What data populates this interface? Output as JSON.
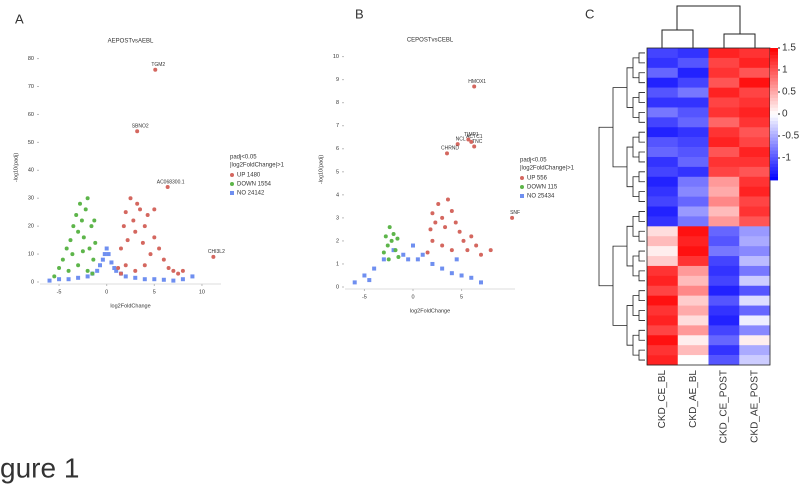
{
  "caption": "gure 1",
  "chart_data": [
    {
      "type": "scatter",
      "panel": "A",
      "title": "AEPOSTvsAEBL",
      "x_label": "log2FoldChange",
      "y_label": "-log10(padj)",
      "xlim": [
        -7,
        12
      ],
      "ylim": [
        0,
        82
      ],
      "xticks": [
        -5,
        0,
        5,
        10
      ],
      "yticks": [
        0,
        10,
        20,
        30,
        40,
        50,
        60,
        70,
        80
      ],
      "grid": false,
      "legend_title": [
        "padj<0.05",
        "|log2FoldChange|>1"
      ],
      "series": [
        {
          "name": "UP 1480",
          "color": "#d4675f",
          "marker": "circle",
          "x": [
            1.2,
            1.5,
            1.8,
            2,
            2.2,
            2.5,
            2.8,
            3,
            3.2,
            3.5,
            3.8,
            4,
            4.3,
            4.6,
            5,
            5.5,
            6,
            6.5,
            7,
            7.5,
            8,
            2,
            3,
            4,
            1.5,
            5
          ],
          "y": [
            5,
            12,
            20,
            25,
            15,
            30,
            22,
            18,
            28,
            26,
            14,
            20,
            24,
            10,
            16,
            12,
            8,
            5,
            4,
            3,
            4,
            6,
            4,
            6,
            3,
            26
          ]
        },
        {
          "name": "DOWN 1554",
          "color": "#5db54a",
          "marker": "circle",
          "x": [
            -5.5,
            -5,
            -4.6,
            -4.2,
            -3.8,
            -3.5,
            -3.2,
            -3,
            -2.8,
            -2.6,
            -2.4,
            -2.2,
            -2,
            -1.8,
            -1.6,
            -1.4,
            -1.2,
            -4,
            -3,
            -2,
            -1.5,
            -3.6,
            -2.5,
            -1.3
          ],
          "y": [
            2,
            5,
            8,
            12,
            15,
            20,
            24,
            18,
            28,
            22,
            16,
            26,
            30,
            12,
            20,
            8,
            14,
            4,
            6,
            4,
            3,
            10,
            11,
            22
          ]
        },
        {
          "name": "NO 24142",
          "color": "#6f8ff0",
          "marker": "square",
          "x": [
            -6,
            -5,
            -4,
            -3,
            -2,
            -1.5,
            -1,
            -0.7,
            -0.4,
            -0.2,
            0,
            0.2,
            0.5,
            0.8,
            1,
            1.5,
            2,
            3,
            4,
            5,
            6,
            7,
            8,
            9
          ],
          "y": [
            0.5,
            1,
            1,
            1.5,
            2,
            3,
            4,
            6,
            8,
            10,
            12,
            10,
            7,
            5,
            4,
            3,
            2,
            1.5,
            1,
            1,
            0.8,
            0.5,
            1,
            2
          ]
        }
      ],
      "annotations": [
        {
          "text": "TGM2",
          "x": 5.1,
          "y": 76
        },
        {
          "text": "SBNO2",
          "x": 3.2,
          "y": 54
        },
        {
          "text": "AC068300.1",
          "x": 6.4,
          "y": 34
        },
        {
          "text": "CHI3L2",
          "x": 11.2,
          "y": 9
        }
      ]
    },
    {
      "type": "scatter",
      "panel": "B",
      "title": "CEPOSTvsCEBL",
      "x_label": "log2FoldChange",
      "y_label": "-log10(padj)",
      "xlim": [
        -7,
        10.5
      ],
      "ylim": [
        0,
        10.2
      ],
      "xticks": [
        -5,
        0,
        5
      ],
      "yticks": [
        0,
        1,
        2,
        3,
        4,
        5,
        6,
        7,
        8,
        9,
        10
      ],
      "grid": false,
      "legend_title": [
        "padj<0.05",
        "|log2FoldChange|>1"
      ],
      "series": [
        {
          "name": "UP 556",
          "color": "#d4675f",
          "marker": "circle",
          "x": [
            1.5,
            1.8,
            2,
            2.3,
            2.6,
            3,
            3.3,
            3.6,
            4,
            4.4,
            4.8,
            5.2,
            5.6,
            6,
            6.5,
            7,
            8,
            2,
            3,
            4
          ],
          "y": [
            1.5,
            2.5,
            3.2,
            2.8,
            3.6,
            3,
            2.6,
            3.8,
            3.3,
            2.8,
            2.4,
            2,
            1.6,
            2.2,
            1.8,
            1.4,
            1.6,
            2,
            1.8,
            1.6
          ]
        },
        {
          "name": "DOWN 115",
          "color": "#5db54a",
          "marker": "circle",
          "x": [
            -3,
            -2.8,
            -2.6,
            -2.4,
            -2.2,
            -2,
            -1.8,
            -1.6,
            -1.5,
            -2.5
          ],
          "y": [
            1.5,
            2.2,
            1.8,
            2.6,
            2,
            2.3,
            1.6,
            2.1,
            1.3,
            1.2
          ]
        },
        {
          "name": "NO 25434",
          "color": "#6f8ff0",
          "marker": "square",
          "x": [
            -6,
            -5,
            -4,
            -3,
            -2,
            -1,
            -0.5,
            0,
            0.5,
            1,
            2,
            3,
            4,
            5,
            6,
            7,
            -4.5,
            4.5
          ],
          "y": [
            0.2,
            0.5,
            0.8,
            1.2,
            1.6,
            1.4,
            1.2,
            1.8,
            1.2,
            1.4,
            1,
            0.8,
            0.6,
            0.5,
            0.4,
            0.2,
            0.3,
            1.2
          ]
        }
      ],
      "annotations": [
        {
          "text": "HMOX1",
          "x": 6.3,
          "y": 8.7
        },
        {
          "text": "TIMP1",
          "x": 5.7,
          "y": 6.4
        },
        {
          "text": "NCL",
          "x": 4.6,
          "y": 6.2
        },
        {
          "text": "ACTC1",
          "x": 6.0,
          "y": 6.3
        },
        {
          "text": "TNC",
          "x": 6.3,
          "y": 6.1
        },
        {
          "text": "CHRND",
          "x": 3.5,
          "y": 5.8
        },
        {
          "text": "SNF",
          "x": 10.2,
          "y": 3.0
        }
      ]
    },
    {
      "type": "heatmap",
      "panel": "C",
      "columns": [
        "CKD_CE_BL",
        "CKD_AE_BL",
        "CKD_CE_POST",
        "CKD_AE_POST"
      ],
      "colorscale": [
        "#0000ff",
        "#ffffff",
        "#ff0000"
      ],
      "zlim": [
        -1.5,
        1.5
      ],
      "zticks": [
        -1,
        -0.5,
        0,
        0.5,
        1,
        1.5
      ],
      "values": [
        [
          -1.1,
          -1.2,
          1.3,
          1.2
        ],
        [
          -1.2,
          -1.0,
          1.1,
          1.3
        ],
        [
          -0.9,
          -1.3,
          1.2,
          1.0
        ],
        [
          -1.3,
          -1.1,
          1.0,
          1.4
        ],
        [
          -1.0,
          -0.8,
          1.3,
          1.1
        ],
        [
          -1.2,
          -1.2,
          1.1,
          1.2
        ],
        [
          -0.8,
          -1.0,
          1.2,
          1.3
        ],
        [
          -1.1,
          -0.9,
          0.9,
          1.2
        ],
        [
          -1.3,
          -1.2,
          1.2,
          1.0
        ],
        [
          -1.0,
          -1.1,
          1.3,
          1.1
        ],
        [
          -0.9,
          -1.0,
          1.0,
          1.3
        ],
        [
          -1.2,
          -0.9,
          1.2,
          1.2
        ],
        [
          -1.1,
          -1.2,
          1.1,
          1.0
        ],
        [
          -1.3,
          -0.8,
          0.6,
          1.2
        ],
        [
          -1.2,
          -0.7,
          0.5,
          1.3
        ],
        [
          -1.1,
          -0.9,
          0.7,
          1.1
        ],
        [
          -1.3,
          -0.6,
          0.4,
          1.2
        ],
        [
          -1.2,
          -0.8,
          0.6,
          1.0
        ],
        [
          0.2,
          1.4,
          -0.9,
          -0.6
        ],
        [
          0.4,
          1.3,
          -1.0,
          -0.5
        ],
        [
          0.1,
          1.4,
          -0.8,
          -0.7
        ],
        [
          0.3,
          1.2,
          -1.1,
          -0.4
        ],
        [
          1.2,
          0.6,
          -1.2,
          -0.8
        ],
        [
          1.3,
          0.4,
          -1.1,
          -0.3
        ],
        [
          1.1,
          0.7,
          -1.3,
          -1.0
        ],
        [
          1.4,
          0.3,
          -1.0,
          -0.2
        ],
        [
          1.2,
          0.5,
          -1.2,
          -0.9
        ],
        [
          1.3,
          0.2,
          -1.3,
          -0.1
        ],
        [
          1.1,
          0.6,
          -1.1,
          -0.7
        ],
        [
          1.4,
          0.1,
          -0.9,
          0.1
        ],
        [
          1.2,
          0.4,
          -1.2,
          -0.5
        ],
        [
          1.3,
          0.0,
          -1.0,
          -0.3
        ]
      ]
    }
  ]
}
